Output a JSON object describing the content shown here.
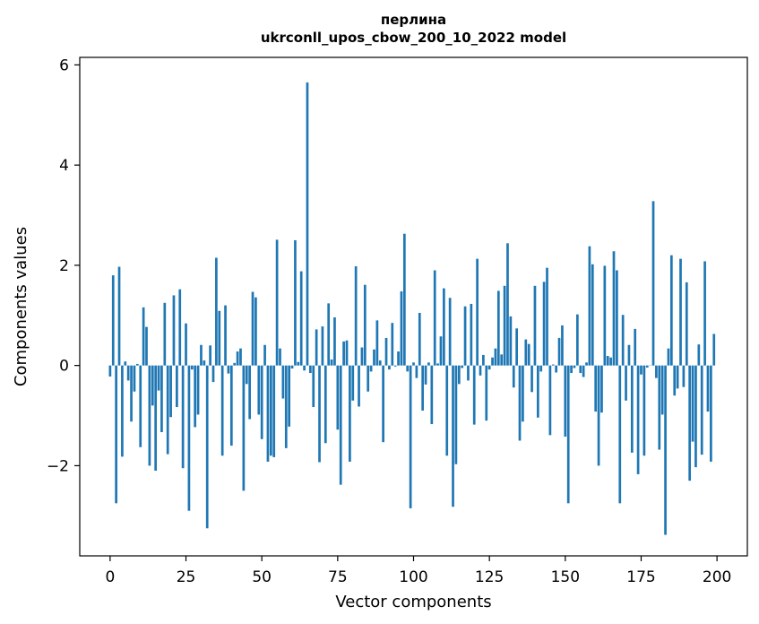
{
  "chart_data": {
    "type": "bar",
    "title": "перлина",
    "subtitle": "ukrconll_upos_cbow_200_10_2022 model",
    "xlabel": "Vector components",
    "ylabel": "Components values",
    "xlim": [
      -10,
      210
    ],
    "ylim": [
      -3.8,
      6.15
    ],
    "xticks": [
      0,
      25,
      50,
      75,
      100,
      125,
      150,
      175,
      200
    ],
    "yticks": [
      -2,
      0,
      2,
      4,
      6
    ],
    "ytick_labels": [
      "−2",
      "0",
      "2",
      "4",
      "6"
    ],
    "bar_color": "#1f77b4",
    "grid": false,
    "values": [
      -0.22,
      1.8,
      -2.75,
      1.97,
      -1.82,
      0.08,
      -0.3,
      -1.12,
      -0.52,
      0.03,
      -1.63,
      1.16,
      0.77,
      -2.0,
      -0.8,
      -2.1,
      -0.5,
      -1.33,
      1.25,
      -1.77,
      -1.03,
      1.4,
      -0.83,
      1.52,
      -2.05,
      0.84,
      -2.9,
      -0.08,
      -1.23,
      -0.98,
      0.41,
      0.1,
      -3.25,
      0.4,
      -0.33,
      2.15,
      1.09,
      -1.8,
      1.2,
      -0.16,
      -1.6,
      0.05,
      0.28,
      0.34,
      -2.5,
      -0.37,
      -1.07,
      1.47,
      1.36,
      -0.98,
      -1.47,
      0.41,
      -1.92,
      -1.8,
      -1.83,
      2.51,
      0.34,
      -0.66,
      -1.65,
      -1.22,
      -0.06,
      2.5,
      0.07,
      1.88,
      -0.1,
      5.65,
      -0.15,
      -0.83,
      0.72,
      -1.93,
      0.78,
      -1.55,
      1.24,
      0.12,
      0.96,
      -1.28,
      -2.38,
      0.48,
      0.5,
      -1.92,
      -0.7,
      1.98,
      -0.82,
      0.36,
      1.61,
      -0.52,
      -0.12,
      0.32,
      0.9,
      0.1,
      -1.53,
      0.55,
      -0.08,
      0.85,
      -0.02,
      0.28,
      1.48,
      2.63,
      -0.12,
      -2.85,
      0.06,
      -0.25,
      1.05,
      -0.9,
      -0.38,
      0.06,
      -1.17,
      1.9,
      0.04,
      0.58,
      1.54,
      -1.8,
      1.35,
      -2.82,
      -1.97,
      -0.37,
      -0.05,
      1.18,
      -0.3,
      1.23,
      -1.18,
      2.13,
      -0.2,
      0.21,
      -1.1,
      -0.08,
      0.16,
      0.34,
      1.49,
      0.22,
      1.59,
      2.44,
      0.98,
      -0.44,
      0.74,
      -1.5,
      -1.12,
      0.52,
      0.43,
      -0.53,
      1.59,
      -1.04,
      -0.12,
      1.67,
      1.95,
      -1.39,
      0.02,
      -0.14,
      0.55,
      0.8,
      -1.42,
      -2.75,
      -0.15,
      -0.05,
      1.02,
      -0.15,
      -0.23,
      0.06,
      2.38,
      2.02,
      -0.92,
      -2.0,
      -0.94,
      1.99,
      0.19,
      0.16,
      2.28,
      1.9,
      -2.75,
      1.01,
      -0.7,
      0.41,
      -1.74,
      0.73,
      -2.17,
      -0.18,
      -1.8,
      -0.04,
      0.0,
      3.28,
      -0.25,
      -1.68,
      -0.98,
      -3.38,
      0.34,
      2.2,
      -0.6,
      -0.46,
      2.13,
      -0.43,
      1.66,
      -2.3,
      -1.52,
      -2.03,
      0.42,
      -1.78,
      2.08,
      -0.92,
      -1.92,
      0.63
    ]
  }
}
